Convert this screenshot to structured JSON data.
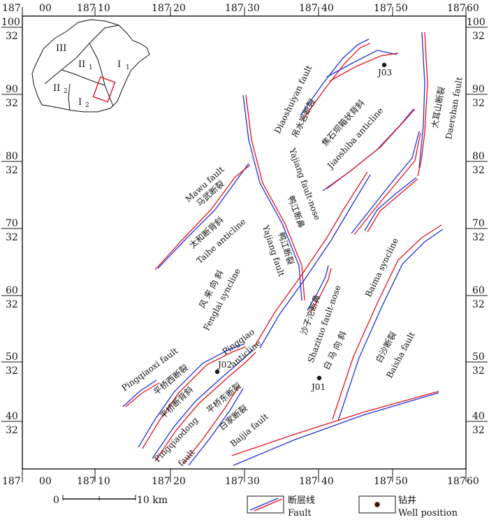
{
  "map": {
    "top_ticks": [
      [
        "187",
        "00"
      ],
      [
        "187",
        "10"
      ],
      [
        "187",
        "20"
      ],
      [
        "187",
        "30"
      ],
      [
        "187",
        "40"
      ],
      [
        "187",
        "50"
      ],
      [
        "187",
        "60"
      ]
    ],
    "bottom_ticks": [
      [
        "187",
        "00"
      ],
      [
        "187",
        "10"
      ],
      [
        "187",
        "20"
      ],
      [
        "187",
        "30"
      ],
      [
        "187",
        "40"
      ],
      [
        "187",
        "50"
      ],
      [
        "187",
        "60"
      ]
    ],
    "side_ticks": [
      [
        "100",
        "32"
      ],
      [
        "90",
        "32"
      ],
      [
        "80",
        "32"
      ],
      [
        "70",
        "32"
      ],
      [
        "60",
        "32"
      ],
      [
        "50",
        "32"
      ],
      [
        "40",
        "32"
      ]
    ],
    "inset": {
      "zones": [
        "III",
        "II",
        "1",
        "I",
        "1",
        "II",
        "2",
        "I",
        "2"
      ]
    },
    "wells": [
      "J03",
      "J02",
      "J01"
    ],
    "labels": {
      "diaoshuiyan_en": "Diaoshuiyan fault",
      "diaoshuiyan_cn": "吊水岩断裂",
      "jiaoshiba_cn": "焦石坝箱状背斜",
      "jiaoshiba_en": "Jiaoshiba  anticline",
      "daershan_cn": "大耳山断裂",
      "daershan_en": "Daershan fault",
      "mawu_en": "Mawu fault",
      "mawu_cn": "马武断裂",
      "yajiang_nose_en": "Yajiang fault-nose",
      "yajiang_nose_cn": "鸭江断鼻",
      "taihe_cn": "太和断背斜",
      "taihe_en": "Taihe anticline",
      "yajiang_fault_en": "Yajiang fault",
      "yajiang_fault_cn": "鸭江断裂",
      "fenglai_cn": "风 来 向 斜",
      "fenglai_en": "Fenglai syncline",
      "shazituo_cn": "沙子沱断鼻",
      "shazituo_en": "Shazituo fault-nose",
      "baima_en": "Baima   syncline",
      "baima_cn": "白 马 向 斜",
      "baisha_cn": "白沙断裂",
      "baisha_en": "Baisha   fault",
      "pingqiaoxi_en": "Pingqiaoxi fault",
      "pingqiaoxi_cn": "平桥西断裂",
      "pingqiao_en1": "Pingqiao",
      "pingqiao_en2": "anticline",
      "pingqiao_cn": "平桥断背斜",
      "pingqiaodong_cn": "平桥东断裂",
      "pingqiaodong_en1": "Pingqiaodong",
      "pingqiaodong_en2": "fault",
      "baijia_cn": "白家断裂",
      "baijia_en": "Baijia fault"
    },
    "scale": {
      "zero": "0",
      "label": "10 km"
    },
    "legend": {
      "fault_cn": "断层线",
      "fault_en": "Fault",
      "well_cn": "钻井",
      "well_en": "Well position"
    },
    "colors": {
      "fault_a": "#1f2fd6",
      "fault_b": "#e3101e",
      "well": "#1a1a1a",
      "well_ring": "#c0392b",
      "inset_box": "#e3101e"
    }
  }
}
